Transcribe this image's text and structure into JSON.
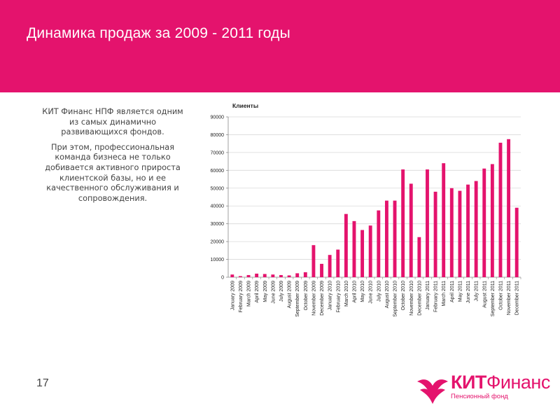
{
  "slide": {
    "title": "Динамика продаж за 2009 - 2011 годы",
    "paragraph1": "КИТ Финанс НПФ является одним из самых динамично развивающихся фондов.",
    "paragraph2": "При этом, профессиональная команда бизнеса не только добивается активного прироста клиентской базы, но и ее качественного обслуживания и сопровождения.",
    "page_number": "17",
    "accent_color": "#e4136d"
  },
  "logo": {
    "brand_bold": "КИТ",
    "brand_regular": "Финанс",
    "subtitle": "Пенсионный фонд"
  },
  "chart_data": {
    "type": "bar",
    "title": "Клиенты",
    "xlabel": "",
    "ylabel": "",
    "ylim": [
      0,
      90000
    ],
    "yticks": [
      0,
      10000,
      20000,
      30000,
      40000,
      50000,
      60000,
      70000,
      80000,
      90000
    ],
    "grid": true,
    "legend": "none",
    "bar_color": "#e4136d",
    "categories": [
      "January 2009",
      "February 2009",
      "March 2009",
      "April 2009",
      "May 2009",
      "June 2009",
      "July 2009",
      "August 2009",
      "September 2009",
      "October 2009",
      "November 2009",
      "December 2009",
      "January 2010",
      "February 2010",
      "March 2010",
      "April 2010",
      "May 2010",
      "June 2010",
      "July 2010",
      "August 2010",
      "September 2010",
      "October 2010",
      "November 2010",
      "December 2010",
      "January 2011",
      "February 2011",
      "March 2011",
      "April 2011",
      "May 2011",
      "June 2011",
      "July 2011",
      "August 2011",
      "September 2011",
      "October 2011",
      "November 2011",
      "December 2011"
    ],
    "values": [
      1500,
      600,
      1200,
      2000,
      1800,
      1500,
      1200,
      1000,
      2200,
      2800,
      18000,
      7500,
      12500,
      15500,
      35500,
      31500,
      26500,
      29000,
      37500,
      43000,
      43000,
      60500,
      52500,
      22500,
      60500,
      48000,
      64000,
      50000,
      48500,
      52000,
      54000,
      61000,
      63500,
      75500,
      77500,
      39000
    ]
  }
}
